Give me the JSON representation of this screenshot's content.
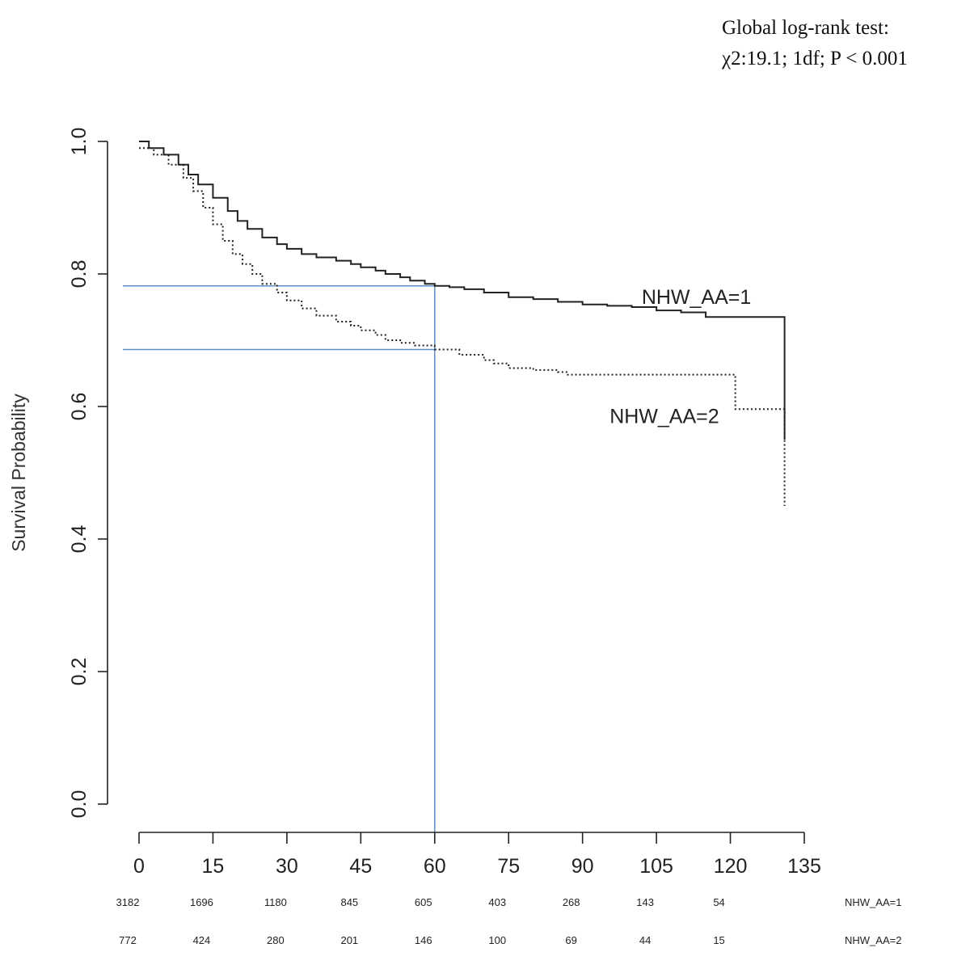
{
  "annotation": {
    "line1": "Global log-rank test:",
    "line2": "χ2:19.1; 1df; P < 0.001"
  },
  "chart_data": {
    "type": "line",
    "title": "",
    "xlabel": "",
    "ylabel": "Survival Probability",
    "xlim": [
      0,
      135
    ],
    "ylim": [
      0,
      1
    ],
    "x_ticks": [
      0,
      15,
      30,
      45,
      60,
      75,
      90,
      105,
      120,
      135
    ],
    "x_tick_labels": [
      "0",
      "15",
      "30",
      "45",
      "60",
      "75",
      "90",
      "105",
      "120",
      "135"
    ],
    "y_ticks": [
      0,
      0.2,
      0.4,
      0.6,
      0.8,
      1.0
    ],
    "y_tick_labels": [
      "0.0",
      "0.2",
      "0.4",
      "0.6",
      "0.8",
      "1.0"
    ],
    "grid": false,
    "series": [
      {
        "name": "NHW_AA=1",
        "line_style": "solid",
        "color": "#222222",
        "x": [
          0,
          2,
          5,
          8,
          10,
          12,
          15,
          18,
          20,
          22,
          25,
          28,
          30,
          33,
          36,
          40,
          43,
          45,
          48,
          50,
          53,
          55,
          58,
          60,
          63,
          66,
          70,
          75,
          80,
          85,
          90,
          95,
          100,
          105,
          110,
          115,
          120,
          125,
          131
        ],
        "y": [
          1.0,
          0.99,
          0.98,
          0.965,
          0.95,
          0.935,
          0.915,
          0.895,
          0.88,
          0.868,
          0.855,
          0.845,
          0.838,
          0.83,
          0.825,
          0.82,
          0.815,
          0.81,
          0.805,
          0.8,
          0.795,
          0.79,
          0.785,
          0.782,
          0.78,
          0.777,
          0.772,
          0.765,
          0.762,
          0.758,
          0.754,
          0.752,
          0.75,
          0.745,
          0.742,
          0.735,
          0.735,
          0.735,
          0.55
        ]
      },
      {
        "name": "NHW_AA=2",
        "line_style": "dotted",
        "color": "#222222",
        "x": [
          0,
          3,
          6,
          9,
          11,
          13,
          15,
          17,
          19,
          21,
          23,
          25,
          28,
          30,
          33,
          36,
          40,
          43,
          45,
          48,
          50,
          53,
          56,
          60,
          65,
          70,
          72,
          75,
          80,
          85,
          87,
          90,
          100,
          110,
          121,
          126,
          131
        ],
        "y": [
          0.99,
          0.98,
          0.965,
          0.945,
          0.925,
          0.9,
          0.875,
          0.85,
          0.83,
          0.815,
          0.8,
          0.785,
          0.772,
          0.76,
          0.748,
          0.737,
          0.728,
          0.722,
          0.715,
          0.708,
          0.7,
          0.696,
          0.692,
          0.686,
          0.678,
          0.67,
          0.665,
          0.658,
          0.655,
          0.652,
          0.648,
          0.648,
          0.648,
          0.648,
          0.596,
          0.596,
          0.45
        ]
      }
    ],
    "reference_lines": {
      "color": "#5b8fc7",
      "vertical_x": 60,
      "horizontal_y": [
        0.782,
        0.686
      ]
    },
    "curve_labels": [
      {
        "text": "NHW_AA=1",
        "x": 102,
        "y": 0.755
      },
      {
        "text": "NHW_AA=2",
        "x": 95.5,
        "y": 0.575
      }
    ],
    "risk_table": {
      "times": [
        0,
        15,
        30,
        45,
        60,
        75,
        90,
        105,
        120
      ],
      "rows": [
        {
          "label": "NHW_AA=1",
          "values": [
            3182,
            1696,
            1180,
            845,
            605,
            403,
            268,
            143,
            54
          ]
        },
        {
          "label": "NHW_AA=2",
          "values": [
            772,
            424,
            280,
            201,
            146,
            100,
            69,
            44,
            15
          ]
        }
      ]
    }
  }
}
